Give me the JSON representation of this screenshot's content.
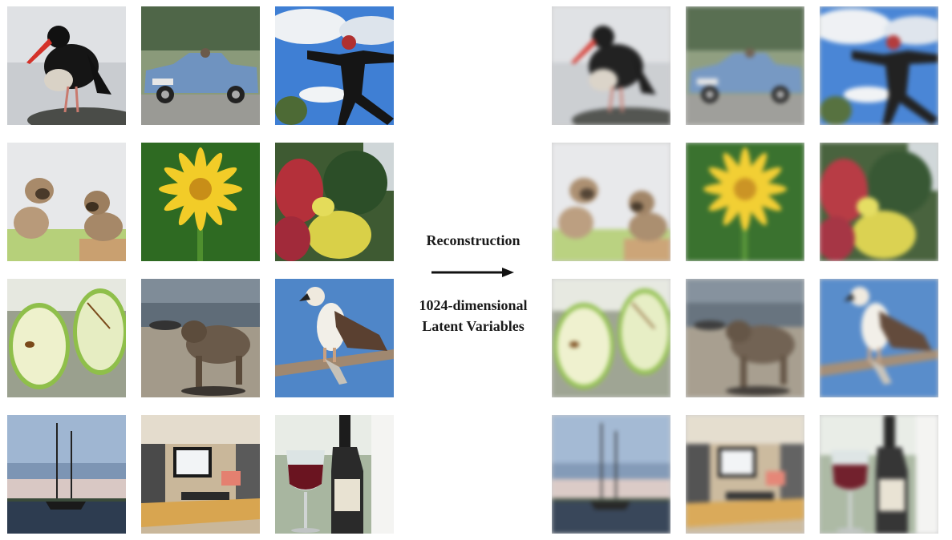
{
  "labels": {
    "reconstruction": "Reconstruction",
    "latent_line1": "1024-dimensional",
    "latent_line2": "Latent Variables"
  },
  "colors": {
    "text": "#1a1a1a",
    "arrow": "#111111",
    "background": "#ffffff"
  },
  "images": [
    {
      "id": "oystercatcher",
      "subject": "bird"
    },
    {
      "id": "convertible-car",
      "subject": "car"
    },
    {
      "id": "jumping-person",
      "subject": "person"
    },
    {
      "id": "pug-puppies",
      "subject": "dogs"
    },
    {
      "id": "yellow-flower",
      "subject": "flower"
    },
    {
      "id": "flower-garden",
      "subject": "flowers"
    },
    {
      "id": "green-apple-halves",
      "subject": "apple"
    },
    {
      "id": "dog-on-beach",
      "subject": "dog"
    },
    {
      "id": "osprey-on-branch",
      "subject": "bird"
    },
    {
      "id": "sailboat",
      "subject": "boat"
    },
    {
      "id": "office-desk",
      "subject": "office"
    },
    {
      "id": "wine-glass-bottle",
      "subject": "wine"
    }
  ]
}
